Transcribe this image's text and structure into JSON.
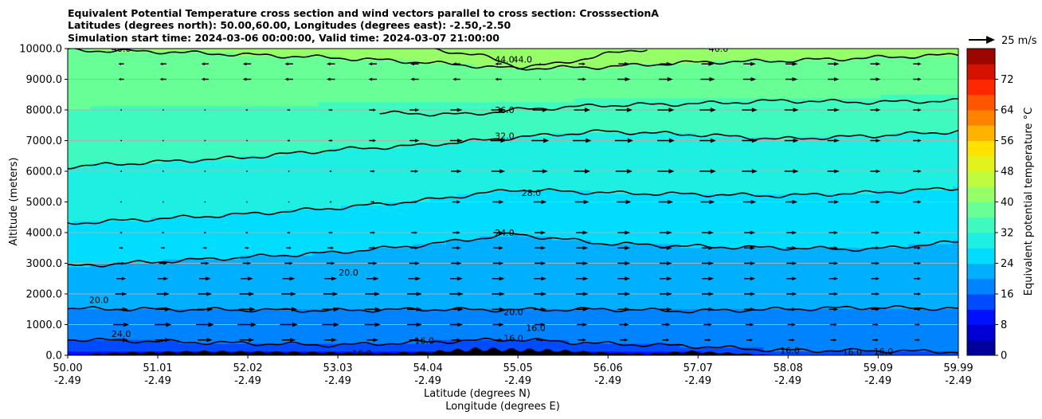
{
  "chart_data": {
    "type": "contour-cross-section",
    "title_lines": [
      "Equivalent Potential Temperature cross section and wind vectors parallel to cross section: CrosssectionA",
      "Latitudes (degrees north): 50.00,60.00, Longitudes (degrees east): -2.50,-2.50",
      "Simulation start time: 2024-03-06 00:00:00, Valid time: 2024-03-07 21:00:00"
    ],
    "xlabel_lines": [
      "Latitude (degrees N)",
      "Longitude (degrees E)"
    ],
    "ylabel": "Altitude (meters)",
    "xlim": [
      50.0,
      59.99
    ],
    "ylim": [
      0,
      10000
    ],
    "grid": "horizontal",
    "x_ticks": [
      {
        "lat": "50.00",
        "lon": "-2.49",
        "value": 50.0
      },
      {
        "lat": "51.01",
        "lon": "-2.49",
        "value": 51.01
      },
      {
        "lat": "52.02",
        "lon": "-2.49",
        "value": 52.02
      },
      {
        "lat": "53.03",
        "lon": "-2.49",
        "value": 53.03
      },
      {
        "lat": "54.04",
        "lon": "-2.49",
        "value": 54.04
      },
      {
        "lat": "55.05",
        "lon": "-2.49",
        "value": 55.05
      },
      {
        "lat": "56.06",
        "lon": "-2.49",
        "value": 56.06
      },
      {
        "lat": "57.07",
        "lon": "-2.49",
        "value": 57.07
      },
      {
        "lat": "58.08",
        "lon": "-2.49",
        "value": 58.08
      },
      {
        "lat": "59.09",
        "lon": "-2.49",
        "value": 59.09
      },
      {
        "lat": "59.99",
        "lon": "-2.49",
        "value": 59.99
      }
    ],
    "y_ticks": [
      {
        "label": "0.0",
        "value": 0
      },
      {
        "label": "1000.0",
        "value": 1000
      },
      {
        "label": "2000.0",
        "value": 2000
      },
      {
        "label": "3000.0",
        "value": 3000
      },
      {
        "label": "4000.0",
        "value": 4000
      },
      {
        "label": "5000.0",
        "value": 5000
      },
      {
        "label": "6000.0",
        "value": 6000
      },
      {
        "label": "7000.0",
        "value": 7000
      },
      {
        "label": "8000.0",
        "value": 8000
      },
      {
        "label": "9000.0",
        "value": 9000
      },
      {
        "label": "10000.0",
        "value": 10000
      }
    ],
    "colorbar": {
      "label": "Equivalent potential temperature °C",
      "range": [
        0,
        80
      ],
      "step": 4,
      "ticks": [
        {
          "label": "0",
          "value": 0
        },
        {
          "label": "8",
          "value": 8
        },
        {
          "label": "16",
          "value": 16
        },
        {
          "label": "24",
          "value": 24
        },
        {
          "label": "32",
          "value": 32
        },
        {
          "label": "40",
          "value": 40
        },
        {
          "label": "48",
          "value": 48
        },
        {
          "label": "56",
          "value": 56
        },
        {
          "label": "64",
          "value": 64
        },
        {
          "label": "72",
          "value": 72
        }
      ]
    },
    "wind_key": {
      "label": "25 m/s",
      "speed": 25
    },
    "contour_levels": [
      16,
      20,
      24,
      28,
      32,
      36,
      40,
      44
    ],
    "contour_lines": [
      {
        "level": 16,
        "x": [
          50.0,
          51.5,
          53.0,
          54.0,
          55.0,
          56.0,
          57.0,
          58.0,
          59.0,
          59.99
        ],
        "y": [
          520,
          420,
          330,
          430,
          520,
          380,
          300,
          160,
          150,
          110
        ]
      },
      {
        "level": 20,
        "x": [
          50.0,
          51.0,
          52.0,
          53.0,
          54.0,
          55.0,
          56.0,
          57.0,
          58.0,
          59.0,
          59.99
        ],
        "y": [
          1520,
          1500,
          1480,
          1460,
          1500,
          1480,
          1500,
          1440,
          1500,
          1560,
          1520
        ]
      },
      {
        "level": 24,
        "x": [
          50.0,
          51.0,
          52.0,
          53.0,
          54.0,
          55.0,
          56.0,
          57.0,
          58.0,
          59.0,
          59.99
        ],
        "y": [
          2900,
          3050,
          3200,
          3350,
          3600,
          3950,
          3650,
          3550,
          3500,
          3450,
          3700
        ]
      },
      {
        "level": 28,
        "x": [
          50.0,
          51.0,
          52.0,
          53.0,
          54.0,
          55.0,
          56.0,
          57.0,
          58.0,
          59.0,
          59.99
        ],
        "y": [
          4300,
          4450,
          4600,
          4800,
          5050,
          5400,
          5300,
          5250,
          5200,
          5300,
          5450
        ]
      },
      {
        "level": 32,
        "x": [
          50.0,
          51.0,
          52.0,
          53.0,
          54.0,
          55.0,
          56.0,
          57.0,
          58.0,
          59.0,
          59.99
        ],
        "y": [
          6150,
          6300,
          6450,
          6700,
          6850,
          7100,
          7300,
          7200,
          7050,
          7150,
          7300
        ]
      },
      {
        "level": 36,
        "x": [
          53.5,
          54.5,
          55.0,
          56.0,
          57.0,
          58.0,
          59.0,
          59.99
        ],
        "y": [
          7900,
          7850,
          8000,
          8150,
          8200,
          8300,
          8250,
          8300
        ]
      },
      {
        "level": 40,
        "x": [
          50.0,
          51.0,
          52.0,
          53.0,
          54.0,
          55.0,
          56.0,
          57.0,
          58.0,
          59.0,
          59.99
        ],
        "y": [
          9950,
          9900,
          9800,
          9700,
          9550,
          9350,
          9400,
          9550,
          9600,
          9700,
          9800
        ]
      },
      {
        "level": 44,
        "x": [
          54.0,
          54.6,
          55.05,
          55.5,
          56.0,
          56.5
        ],
        "y": [
          10000,
          9800,
          9400,
          9500,
          9800,
          10000
        ]
      }
    ],
    "contour_labels": [
      {
        "text": "40.0",
        "x": 50.6,
        "y": 10000
      },
      {
        "text": "44.0",
        "x": 54.9,
        "y": 9650
      },
      {
        "text": "44.0",
        "x": 55.1,
        "y": 9650
      },
      {
        "text": "40.0",
        "x": 57.3,
        "y": 10000
      },
      {
        "text": "36.0",
        "x": 54.9,
        "y": 8000
      },
      {
        "text": "32.0",
        "x": 54.9,
        "y": 7150
      },
      {
        "text": "28.0",
        "x": 55.2,
        "y": 5300
      },
      {
        "text": "24.0",
        "x": 54.9,
        "y": 4000
      },
      {
        "text": "20.0",
        "x": 53.15,
        "y": 2700
      },
      {
        "text": "20.0",
        "x": 50.35,
        "y": 1800
      },
      {
        "text": "24.0",
        "x": 50.6,
        "y": 700
      },
      {
        "text": "20.0",
        "x": 55.0,
        "y": 1420
      },
      {
        "text": "16.0",
        "x": 54.0,
        "y": 480
      },
      {
        "text": "16.0",
        "x": 53.3,
        "y": 60
      },
      {
        "text": "16.0",
        "x": 55.0,
        "y": 560
      },
      {
        "text": "16.0",
        "x": 55.25,
        "y": 900
      },
      {
        "text": "16.0",
        "x": 58.1,
        "y": 150
      },
      {
        "text": "16.0",
        "x": 58.8,
        "y": 110
      },
      {
        "text": "16.0",
        "x": 59.15,
        "y": 130
      }
    ],
    "wind_vectors_note": "Arrows mostly point toward increasing latitude; near-calm region around 51.5-53.5 N between 4000 and 8000 m; reversed flow near 54-55 N above 8500 m.",
    "wind_vector_rows_speed_ms": [
      {
        "z": 500,
        "u": [
          12,
          14,
          14,
          12,
          10,
          8,
          8,
          6,
          6,
          6,
          4
        ]
      },
      {
        "z": 1000,
        "u": [
          14,
          16,
          18,
          16,
          14,
          10,
          10,
          8,
          8,
          6,
          4
        ]
      },
      {
        "z": 1500,
        "u": [
          12,
          14,
          16,
          16,
          14,
          12,
          12,
          12,
          10,
          8,
          6
        ]
      },
      {
        "z": 2000,
        "u": [
          10,
          12,
          14,
          14,
          14,
          12,
          12,
          12,
          10,
          8,
          6
        ]
      },
      {
        "z": 2500,
        "u": [
          8,
          10,
          12,
          12,
          12,
          12,
          12,
          12,
          10,
          8,
          6
        ]
      },
      {
        "z": 3000,
        "u": [
          6,
          8,
          8,
          8,
          10,
          10,
          12,
          12,
          10,
          8,
          6
        ]
      },
      {
        "z": 3500,
        "u": [
          4,
          4,
          4,
          6,
          8,
          10,
          12,
          12,
          10,
          8,
          6
        ]
      },
      {
        "z": 4000,
        "u": [
          2,
          2,
          2,
          4,
          6,
          10,
          12,
          12,
          10,
          8,
          6
        ]
      },
      {
        "z": 5000,
        "u": [
          2,
          1,
          1,
          2,
          6,
          12,
          14,
          14,
          12,
          10,
          6
        ]
      },
      {
        "z": 6000,
        "u": [
          2,
          1,
          1,
          2,
          8,
          14,
          16,
          16,
          14,
          10,
          6
        ]
      },
      {
        "z": 7000,
        "u": [
          2,
          1,
          1,
          4,
          10,
          16,
          18,
          16,
          14,
          10,
          6
        ]
      },
      {
        "z": 8000,
        "u": [
          2,
          1,
          2,
          4,
          10,
          14,
          16,
          16,
          14,
          10,
          6
        ]
      },
      {
        "z": 9000,
        "u": [
          -4,
          -6,
          -8,
          -8,
          -8,
          -6,
          12,
          14,
          12,
          10,
          6
        ]
      },
      {
        "z": 9500,
        "u": [
          -4,
          -6,
          -8,
          -8,
          -8,
          -6,
          10,
          12,
          12,
          10,
          6
        ]
      }
    ],
    "terrain": {
      "x": [
        50.0,
        50.6,
        51.5,
        52.5,
        53.5,
        54.0,
        54.6,
        55.0,
        55.5,
        56.0,
        56.5,
        57.0,
        57.5,
        58.0,
        59.99
      ],
      "y": [
        0,
        80,
        120,
        100,
        60,
        100,
        200,
        180,
        150,
        80,
        40,
        120,
        60,
        0,
        0
      ]
    },
    "colors": {
      "colorbar_stops": [
        "#00007f",
        "#0000ff",
        "#0080ff",
        "#00e5ff",
        "#4cffb2",
        "#b2ff4c",
        "#ffea00",
        "#ff7f00",
        "#ff1a00",
        "#7f0000"
      ],
      "contour_line": "#000000",
      "terrain": "#000000",
      "grid": "#b0b0b0"
    }
  }
}
